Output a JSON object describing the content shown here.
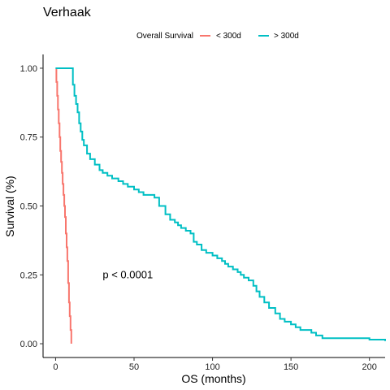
{
  "chart_data": {
    "type": "line",
    "title": "Verhaak",
    "xlabel": "OS (months)",
    "ylabel": "Survival (%)",
    "xlim": [
      -8,
      210
    ],
    "ylim": [
      -0.05,
      1.05
    ],
    "x_ticks": [
      0,
      50,
      100,
      150,
      200
    ],
    "x_tick_labels": [
      "0",
      "50",
      "100",
      "150",
      "200"
    ],
    "y_ticks": [
      0,
      0.25,
      0.5,
      0.75,
      1
    ],
    "y_tick_labels": [
      "0.00",
      "0.25",
      "0.50",
      "0.75",
      "1.00"
    ],
    "grid": false,
    "legend": {
      "title": "Overall Survival",
      "position": "top"
    },
    "annotation": {
      "text": "p < 0.0001",
      "x": 30,
      "y": 0.25
    },
    "series": [
      {
        "name": "< 300d",
        "color": "#F8766D",
        "x": [
          0,
          0.5,
          1,
          1.5,
          2,
          2.5,
          3,
          3.5,
          4,
          4.5,
          5,
          5.5,
          6,
          6.5,
          7,
          7.5,
          8,
          8.5,
          9,
          9.5,
          10
        ],
        "y": [
          1.0,
          0.95,
          0.9,
          0.85,
          0.8,
          0.75,
          0.7,
          0.66,
          0.62,
          0.58,
          0.54,
          0.5,
          0.46,
          0.4,
          0.35,
          0.3,
          0.22,
          0.15,
          0.1,
          0.05,
          0.0
        ]
      },
      {
        "name": "> 300d",
        "color": "#00BFC4",
        "x": [
          0,
          10,
          11,
          12,
          13,
          14,
          15,
          16,
          17,
          18,
          20,
          22,
          25,
          28,
          30,
          33,
          36,
          40,
          43,
          46,
          50,
          53,
          56,
          60,
          63,
          66,
          70,
          73,
          76,
          78,
          80,
          83,
          86,
          88,
          90,
          93,
          96,
          100,
          103,
          106,
          108,
          110,
          113,
          116,
          118,
          120,
          123,
          126,
          128,
          130,
          133,
          136,
          140,
          143,
          146,
          150,
          153,
          156,
          160,
          163,
          166,
          170,
          180,
          190,
          200,
          210
        ],
        "y": [
          1.0,
          1.0,
          0.94,
          0.9,
          0.87,
          0.84,
          0.8,
          0.77,
          0.74,
          0.72,
          0.69,
          0.67,
          0.65,
          0.63,
          0.62,
          0.61,
          0.6,
          0.59,
          0.58,
          0.57,
          0.56,
          0.55,
          0.54,
          0.54,
          0.53,
          0.5,
          0.47,
          0.45,
          0.44,
          0.43,
          0.42,
          0.41,
          0.4,
          0.37,
          0.36,
          0.34,
          0.33,
          0.32,
          0.31,
          0.3,
          0.29,
          0.28,
          0.27,
          0.26,
          0.25,
          0.24,
          0.23,
          0.21,
          0.19,
          0.17,
          0.15,
          0.13,
          0.11,
          0.09,
          0.08,
          0.07,
          0.06,
          0.05,
          0.05,
          0.04,
          0.03,
          0.02,
          0.02,
          0.02,
          0.015,
          0.01
        ]
      }
    ]
  }
}
